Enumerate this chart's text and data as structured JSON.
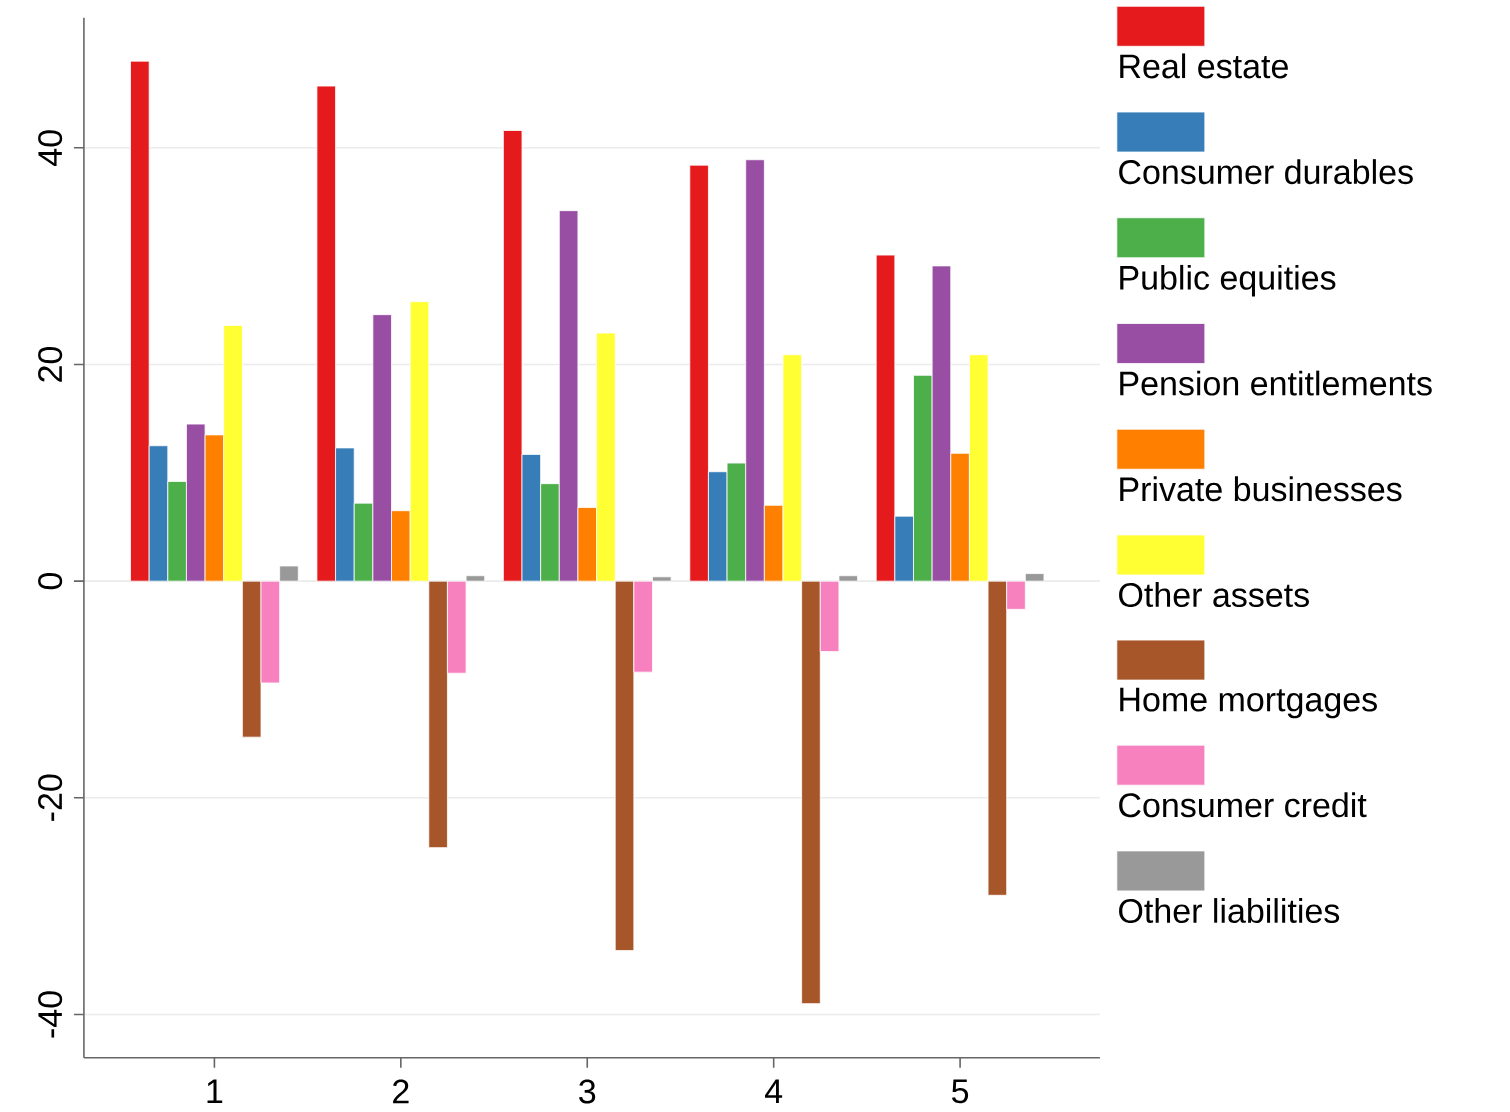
{
  "chart_data": {
    "type": "bar",
    "categories": [
      "1",
      "2",
      "3",
      "4",
      "5"
    ],
    "series": [
      {
        "name": "Real estate",
        "color": "#e41a1c",
        "values": [
          48.0,
          45.7,
          41.6,
          38.4,
          30.1
        ]
      },
      {
        "name": "Consumer durables",
        "color": "#377eb8",
        "values": [
          12.5,
          12.3,
          11.7,
          10.1,
          6.0
        ]
      },
      {
        "name": "Public equities",
        "color": "#4daf4a",
        "values": [
          9.2,
          7.2,
          9.0,
          10.9,
          19.0
        ]
      },
      {
        "name": "Pension entitlements",
        "color": "#984ea3",
        "values": [
          14.5,
          24.6,
          34.2,
          38.9,
          29.1
        ]
      },
      {
        "name": "Private businesses",
        "color": "#ff7f00",
        "values": [
          13.5,
          6.5,
          6.8,
          7.0,
          11.8
        ]
      },
      {
        "name": "Other assets",
        "color": "#ffff33",
        "values": [
          23.6,
          25.8,
          22.9,
          20.9,
          20.9
        ]
      },
      {
        "name": "Home mortgages",
        "color": "#a65628",
        "values": [
          -14.4,
          -24.6,
          -34.1,
          -39.0,
          -29.0
        ]
      },
      {
        "name": "Consumer credit",
        "color": "#f781bf",
        "values": [
          -9.4,
          -8.5,
          -8.4,
          -6.5,
          -2.6
        ]
      },
      {
        "name": "Other liabilities",
        "color": "#999999",
        "values": [
          1.4,
          0.5,
          0.4,
          0.5,
          0.7
        ]
      }
    ],
    "ylim": [
      -44,
      52
    ],
    "yticks": [
      -40,
      -20,
      0,
      20,
      40
    ],
    "grid": "y",
    "legend": "right"
  }
}
